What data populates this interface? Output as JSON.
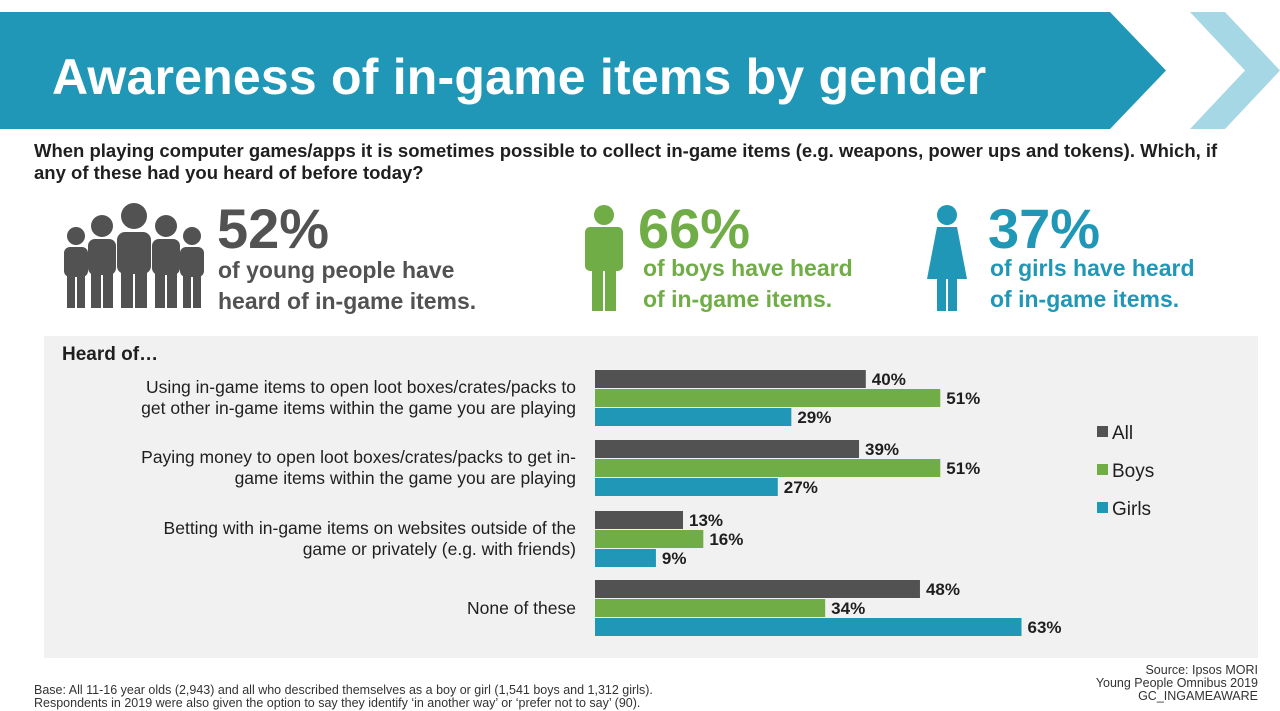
{
  "header": {
    "title": "Awareness of in-game items by gender",
    "question": "When playing computer games/apps it is sometimes possible to collect in-game items (e.g. weapons, power ups and tokens). Which, if any of these had you heard of before today?"
  },
  "stats": {
    "all": {
      "value": "52%",
      "line1": "of young people have",
      "line2": "heard of in-game items.",
      "icon": "group-of-people-icon"
    },
    "boys": {
      "value": "66%",
      "line1": "of boys have heard",
      "line2": "of in-game items.",
      "icon": "boy-icon"
    },
    "girls": {
      "value": "37%",
      "line1": "of girls have heard",
      "line2": "of in-game items.",
      "icon": "girl-icon"
    }
  },
  "colors": {
    "banner": "#2097b6",
    "all": "#525252",
    "boys": "#70ad47",
    "girls": "#2097b6",
    "panel": "#f1f1f1"
  },
  "chart_data": {
    "type": "bar",
    "orientation": "horizontal",
    "title": "Heard of…",
    "categories": [
      [
        "Using in-game items to open loot boxes/crates/packs to",
        "get other in-game items within the game you are playing"
      ],
      [
        "Paying money to open loot boxes/crates/packs to get in-",
        "game items within the game you are playing"
      ],
      [
        "Betting with in-game items on websites outside of the",
        "game or privately (e.g. with friends)"
      ],
      [
        "None of these"
      ]
    ],
    "series": [
      {
        "name": "All",
        "color": "#525252",
        "values": [
          40,
          39,
          13,
          48
        ]
      },
      {
        "name": "Boys",
        "color": "#70ad47",
        "values": [
          51,
          51,
          16,
          34
        ]
      },
      {
        "name": "Girls",
        "color": "#2097b6",
        "values": [
          29,
          27,
          9,
          63
        ]
      }
    ],
    "value_suffix": "%",
    "xlim": [
      0,
      100
    ],
    "grid": false,
    "legend_position": "right"
  },
  "footer": {
    "base_line1": "Base: All 11-16 year olds (2,943) and all who described themselves as a boy or girl (1,541 boys and 1,312 girls).",
    "base_line2": "Respondents in 2019 were also given the option to say they identify ‘in another way’ or ‘prefer not to say’ (90).",
    "source_line1": "Source: Ipsos MORI",
    "source_line2": "Young People Omnibus 2019",
    "source_line3": "GC_INGAMEAWARE"
  }
}
